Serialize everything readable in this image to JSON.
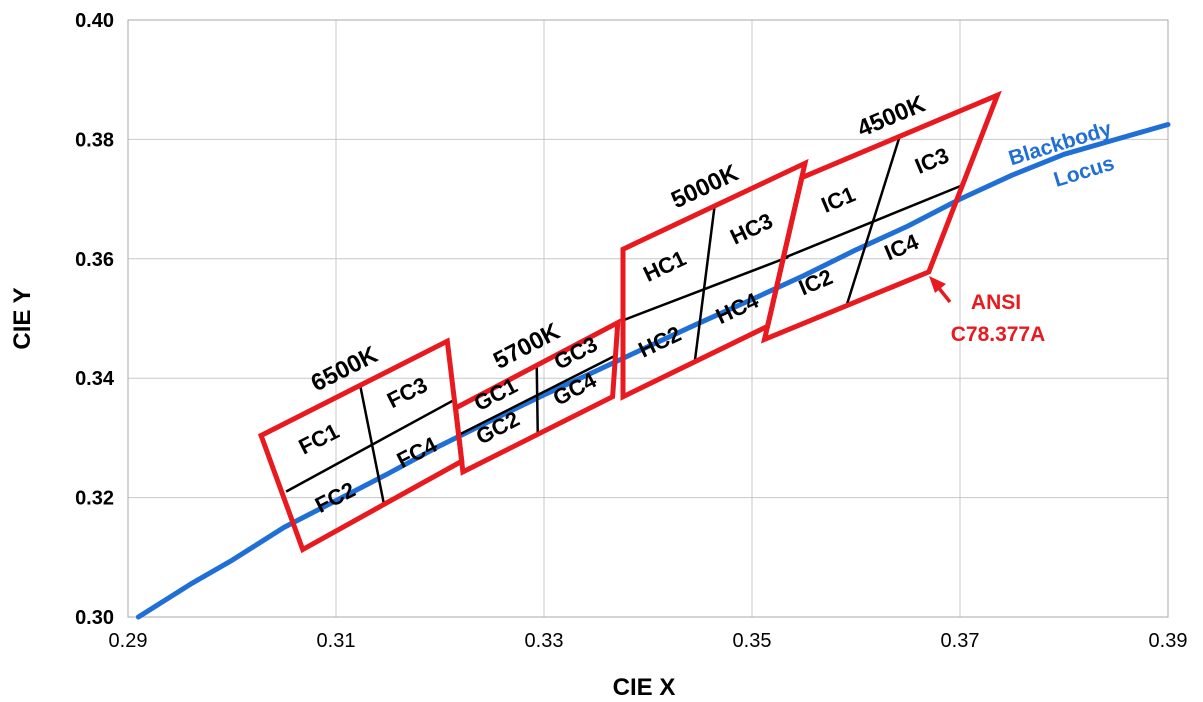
{
  "chart_data": {
    "type": "scatter",
    "xlabel": "CIE X",
    "ylabel": "CIE Y",
    "xlim": [
      0.29,
      0.39
    ],
    "ylim": [
      0.3,
      0.4
    ],
    "x_ticks": [
      "0.29",
      "0.31",
      "0.33",
      "0.35",
      "0.37",
      "0.39"
    ],
    "y_ticks": [
      "0.30",
      "0.32",
      "0.34",
      "0.36",
      "0.38",
      "0.40"
    ],
    "grid": true,
    "colors": {
      "locus": "#1f6fd6",
      "quadrangle": "#e8191f",
      "subdivision": "#000000",
      "grid": "#c8c8c8"
    },
    "blackbody_locus": {
      "label_lines": [
        "Blackbody",
        "Locus"
      ],
      "points": [
        [
          0.291,
          0.3
        ],
        [
          0.296,
          0.3055
        ],
        [
          0.3,
          0.3095
        ],
        [
          0.305,
          0.315
        ],
        [
          0.31,
          0.3195
        ],
        [
          0.315,
          0.324
        ],
        [
          0.32,
          0.3287
        ],
        [
          0.325,
          0.333
        ],
        [
          0.33,
          0.3372
        ],
        [
          0.335,
          0.3412
        ],
        [
          0.34,
          0.3453
        ],
        [
          0.345,
          0.3493
        ],
        [
          0.35,
          0.3532
        ],
        [
          0.355,
          0.3572
        ],
        [
          0.36,
          0.3615
        ],
        [
          0.365,
          0.3655
        ],
        [
          0.37,
          0.37
        ],
        [
          0.375,
          0.374
        ],
        [
          0.38,
          0.3775
        ],
        [
          0.385,
          0.38
        ],
        [
          0.39,
          0.3825
        ]
      ]
    },
    "annotation": {
      "lines": [
        "ANSI",
        "C78.377A"
      ]
    },
    "quadrangles": [
      {
        "cct": "6500K",
        "corners": [
          [
            0.3028,
            0.3304
          ],
          [
            0.3207,
            0.3462
          ],
          [
            0.3221,
            0.3261
          ],
          [
            0.3068,
            0.3113
          ]
        ],
        "mid_top": [
          0.3123,
          0.339
        ],
        "mid_bottom": [
          0.3146,
          0.319
        ],
        "mid_left": [
          0.3052,
          0.321
        ],
        "mid_right": [
          0.3213,
          0.3363
        ],
        "center": [
          0.313,
          0.3292
        ],
        "cells": [
          "FC1",
          "FC3",
          "FC2",
          "FC4"
        ]
      },
      {
        "cct": "5700K",
        "corners": [
          [
            0.3215,
            0.335
          ],
          [
            0.3371,
            0.3493
          ],
          [
            0.3366,
            0.3369
          ],
          [
            0.3222,
            0.3243
          ]
        ],
        "mid_top": [
          0.3293,
          0.3423
        ],
        "mid_bottom": [
          0.3294,
          0.3306
        ],
        "mid_left": [
          0.3218,
          0.3305
        ],
        "mid_right": [
          0.337,
          0.3439
        ],
        "center": [
          0.3287,
          0.3417
        ],
        "cells": [
          "GC1",
          "GC3",
          "GC2",
          "GC4"
        ]
      },
      {
        "cct": "5000K",
        "corners": [
          [
            0.3376,
            0.3616
          ],
          [
            0.3551,
            0.376
          ],
          [
            0.3515,
            0.3487
          ],
          [
            0.3376,
            0.3369
          ]
        ],
        "mid_top": [
          0.3464,
          0.3688
        ],
        "mid_bottom": [
          0.3445,
          0.3428
        ],
        "mid_left": [
          0.3376,
          0.3497
        ],
        "mid_right": [
          0.3535,
          0.3603
        ],
        "center": [
          0.3447,
          0.3553
        ],
        "cells": [
          "HC1",
          "HC3",
          "HC2",
          "HC4"
        ]
      },
      {
        "cct": "4500K",
        "corners": [
          [
            0.3548,
            0.3736
          ],
          [
            0.3736,
            0.3874
          ],
          [
            0.367,
            0.3578
          ],
          [
            0.3512,
            0.3465
          ]
        ],
        "mid_top": [
          0.3642,
          0.3805
        ],
        "mid_bottom": [
          0.3591,
          0.3522
        ],
        "mid_left": [
          0.353,
          0.3601
        ],
        "mid_right": [
          0.3702,
          0.3723
        ],
        "center": [
          0.3611,
          0.3658
        ],
        "cells": [
          "IC1",
          "IC3",
          "IC2",
          "IC4"
        ]
      }
    ]
  }
}
